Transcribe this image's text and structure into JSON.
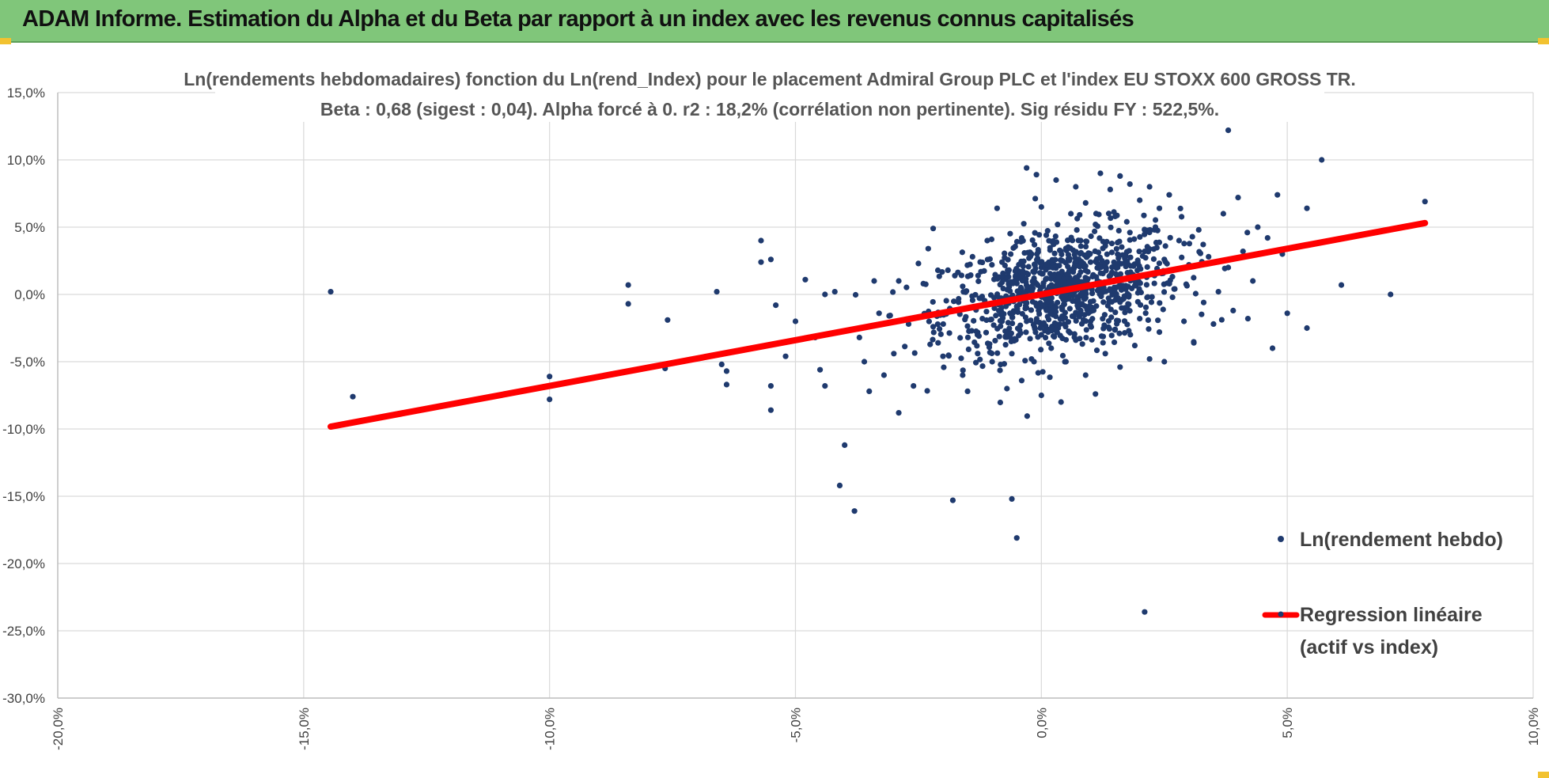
{
  "header": {
    "title": "ADAM Informe. Estimation du Alpha et du Beta par rapport à un index avec les revenus connus capitalisés"
  },
  "colors": {
    "header_bg": "#80c67a",
    "points": "#1f3a6e",
    "regression": "#ff0000",
    "grid": "#d9d9d9",
    "corner_accent": "#f2c230"
  },
  "chart_data": {
    "type": "scatter",
    "title": "Ln(rendements hebdomadaires) fonction du Ln(rend_Index) pour le placement Admiral Group PLC et l'index EU STOXX 600 GROSS TR.",
    "subtitle": "Beta : 0,68 (sigest : 0,04).  Alpha forcé à 0. r2 : 18,2% (corrélation non pertinente). Sig résidu FY : 522,5%.",
    "xlabel": "",
    "ylabel": "",
    "xlim": [
      -0.2,
      0.1
    ],
    "ylim": [
      -0.3,
      0.15
    ],
    "x_ticks": [
      "-20,0%",
      "-15,0%",
      "-10,0%",
      "-5,0%",
      "0,0%",
      "5,0%",
      "10,0%"
    ],
    "y_ticks": [
      "15,0%",
      "10,0%",
      "5,0%",
      "0,0%",
      "-5,0%",
      "-10,0%",
      "-15,0%",
      "-20,0%",
      "-25,0%",
      "-30,0%"
    ],
    "grid": "horizontal and vertical",
    "legend_position": "bottom-right",
    "series": [
      {
        "name": "Ln(rendement hebdo)",
        "kind": "points",
        "points": [
          [
            -0.1445,
            0.002
          ],
          [
            -0.14,
            -0.076
          ],
          [
            -0.1,
            -0.061
          ],
          [
            -0.1,
            -0.078
          ],
          [
            -0.084,
            0.007
          ],
          [
            -0.084,
            -0.007
          ],
          [
            -0.076,
            -0.019
          ],
          [
            -0.0765,
            -0.055
          ],
          [
            -0.066,
            0.002
          ],
          [
            -0.065,
            -0.052
          ],
          [
            -0.064,
            -0.057
          ],
          [
            -0.064,
            -0.067
          ],
          [
            -0.057,
            0.04
          ],
          [
            -0.057,
            0.024
          ],
          [
            -0.055,
            0.026
          ],
          [
            -0.055,
            -0.068
          ],
          [
            -0.055,
            -0.086
          ],
          [
            -0.054,
            -0.008
          ],
          [
            -0.052,
            -0.046
          ],
          [
            -0.05,
            -0.02
          ],
          [
            -0.048,
            0.011
          ],
          [
            -0.046,
            -0.032
          ],
          [
            -0.045,
            -0.056
          ],
          [
            -0.044,
            -0.068
          ],
          [
            -0.044,
            0.0
          ],
          [
            -0.042,
            0.002
          ],
          [
            -0.04,
            -0.112
          ],
          [
            -0.041,
            -0.142
          ],
          [
            -0.038,
            -0.161
          ],
          [
            -0.037,
            -0.032
          ],
          [
            -0.036,
            -0.05
          ],
          [
            -0.035,
            -0.072
          ],
          [
            -0.034,
            0.01
          ],
          [
            -0.033,
            -0.014
          ],
          [
            -0.032,
            -0.06
          ],
          [
            -0.03,
            -0.044
          ],
          [
            -0.029,
            -0.088
          ],
          [
            -0.029,
            0.01
          ],
          [
            -0.027,
            -0.022
          ],
          [
            -0.026,
            -0.068
          ],
          [
            -0.025,
            0.023
          ],
          [
            -0.024,
            0.008
          ],
          [
            -0.023,
            0.034
          ],
          [
            -0.022,
            -0.024
          ],
          [
            -0.022,
            0.049
          ],
          [
            -0.021,
            -0.036
          ],
          [
            -0.02,
            -0.046
          ],
          [
            -0.019,
            0.018
          ],
          [
            -0.018,
            -0.153
          ],
          [
            -0.017,
            -0.012
          ],
          [
            -0.016,
            -0.06
          ],
          [
            -0.016,
            0.006
          ],
          [
            -0.015,
            -0.072
          ],
          [
            -0.014,
            0.028
          ],
          [
            -0.013,
            -0.03
          ],
          [
            -0.012,
            -0.018
          ],
          [
            -0.011,
            0.04
          ],
          [
            -0.01,
            -0.05
          ],
          [
            -0.009,
            0.064
          ],
          [
            -0.008,
            -0.02
          ],
          [
            -0.008,
            0.024
          ],
          [
            -0.007,
            -0.07
          ],
          [
            -0.006,
            -0.152
          ],
          [
            -0.006,
            -0.044
          ],
          [
            -0.005,
            -0.181
          ],
          [
            -0.005,
            0.014
          ],
          [
            -0.004,
            -0.064
          ],
          [
            -0.004,
            0.042
          ],
          [
            -0.003,
            0.094
          ],
          [
            -0.003,
            -0.02
          ],
          [
            -0.002,
            0.03
          ],
          [
            -0.002,
            -0.048
          ],
          [
            -0.001,
            0.089
          ],
          [
            -0.001,
            0.008
          ],
          [
            0.0,
            -0.03
          ],
          [
            0.0,
            0.02
          ],
          [
            0.0,
            0.065
          ],
          [
            0.0,
            -0.075
          ],
          [
            0.001,
            -0.01
          ],
          [
            0.001,
            0.044
          ],
          [
            0.002,
            -0.04
          ],
          [
            0.002,
            0.012
          ],
          [
            0.003,
            0.085
          ],
          [
            0.003,
            -0.022
          ],
          [
            0.004,
            0.032
          ],
          [
            0.004,
            -0.08
          ],
          [
            0.005,
            0.008
          ],
          [
            0.005,
            -0.05
          ],
          [
            0.006,
            0.06
          ],
          [
            0.006,
            0.018
          ],
          [
            0.007,
            -0.034
          ],
          [
            0.007,
            0.08
          ],
          [
            0.008,
            0.04
          ],
          [
            0.008,
            -0.012
          ],
          [
            0.009,
            0.068
          ],
          [
            0.009,
            -0.06
          ],
          [
            0.01,
            0.024
          ],
          [
            0.01,
            -0.02
          ],
          [
            0.011,
            0.052
          ],
          [
            0.011,
            -0.074
          ],
          [
            0.012,
            0.004
          ],
          [
            0.012,
            0.09
          ],
          [
            0.013,
            0.036
          ],
          [
            0.013,
            -0.044
          ],
          [
            0.014,
            0.078
          ],
          [
            0.014,
            0.014
          ],
          [
            0.015,
            -0.026
          ],
          [
            0.015,
            0.058
          ],
          [
            0.016,
            0.088
          ],
          [
            0.016,
            -0.054
          ],
          [
            0.017,
            0.028
          ],
          [
            0.017,
            -0.01
          ],
          [
            0.018,
            0.046
          ],
          [
            0.018,
            0.082
          ],
          [
            0.019,
            -0.038
          ],
          [
            0.019,
            0.01
          ],
          [
            0.02,
            0.07
          ],
          [
            0.02,
            -0.018
          ],
          [
            0.021,
            0.032
          ],
          [
            0.021,
            -0.236
          ],
          [
            0.022,
            0.08
          ],
          [
            0.022,
            -0.048
          ],
          [
            0.023,
            0.014
          ],
          [
            0.023,
            0.048
          ],
          [
            0.024,
            -0.028
          ],
          [
            0.024,
            0.064
          ],
          [
            0.025,
            0.026
          ],
          [
            0.025,
            -0.05
          ],
          [
            0.026,
            0.074
          ],
          [
            0.027,
            0.004
          ],
          [
            0.028,
            0.04
          ],
          [
            0.029,
            -0.02
          ],
          [
            0.03,
            0.022
          ],
          [
            0.031,
            -0.036
          ],
          [
            0.032,
            0.048
          ],
          [
            0.033,
            -0.006
          ],
          [
            0.034,
            0.028
          ],
          [
            0.035,
            -0.022
          ],
          [
            0.036,
            0.002
          ],
          [
            0.037,
            0.06
          ],
          [
            0.038,
            0.122
          ],
          [
            0.038,
            0.02
          ],
          [
            0.039,
            -0.012
          ],
          [
            0.04,
            0.072
          ],
          [
            0.041,
            0.032
          ],
          [
            0.042,
            -0.018
          ],
          [
            0.043,
            0.01
          ],
          [
            0.044,
            0.05
          ],
          [
            0.046,
            0.042
          ],
          [
            0.047,
            -0.04
          ],
          [
            0.048,
            0.074
          ],
          [
            0.049,
            0.03
          ],
          [
            0.05,
            -0.014
          ],
          [
            0.054,
            0.064
          ],
          [
            0.054,
            -0.025
          ],
          [
            0.057,
            0.1
          ],
          [
            0.061,
            0.007
          ],
          [
            0.071,
            0.0
          ],
          [
            0.078,
            0.069
          ]
        ]
      },
      {
        "name": "Regression linéaire (actif vs index)",
        "kind": "line",
        "beta": 0.68,
        "x_range": [
          -0.1445,
          0.078
        ]
      }
    ]
  },
  "legend": {
    "points_label": "Ln(rendement hebdo)",
    "line_label_1": "Regression linéaire",
    "line_label_2": "(actif vs index)"
  }
}
